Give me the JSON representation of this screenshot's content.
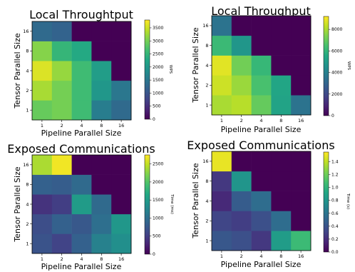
{
  "chart_data": [
    {
      "type": "heatmap",
      "title": "Local Throughtput",
      "xlabel": "Pipeline Parallel Size",
      "ylabel": "Tensor Parallel Size",
      "x": [
        "1",
        "2",
        "4",
        "8",
        "16"
      ],
      "y": [
        "1",
        "2",
        "4",
        "8",
        "16"
      ],
      "colorbar": {
        "label": "WPS",
        "range": [
          0,
          3800
        ],
        "ticks": [
          "0",
          "500",
          "1000",
          "1500",
          "2000",
          "2500",
          "3000",
          "3500"
        ]
      },
      "values": [
        [
          2900,
          3000,
          2600,
          1600,
          1300
        ],
        [
          3300,
          3000,
          2600,
          2000,
          1500
        ],
        [
          3600,
          3200,
          2600,
          2100,
          0
        ],
        [
          3100,
          2500,
          2300,
          0,
          0
        ],
        [
          1300,
          1200,
          0,
          0,
          0
        ]
      ]
    },
    {
      "type": "heatmap",
      "title": "Local Throughput",
      "xlabel": "Pipeline Parallel Size",
      "ylabel": "Tensor Parallel Size",
      "x": [
        "1",
        "2",
        "4",
        "8",
        "16"
      ],
      "y": [
        "1",
        "2",
        "4",
        "8",
        "16"
      ],
      "colorbar": {
        "label": "WPS",
        "range": [
          0,
          9200
        ],
        "ticks": [
          "0",
          "2000",
          "4000",
          "6000",
          "8000"
        ]
      },
      "values": [
        [
          8000,
          8200,
          7000,
          5300,
          3500
        ],
        [
          8500,
          7800,
          6500,
          5400,
          0
        ],
        [
          8800,
          7200,
          6100,
          0,
          0
        ],
        [
          6200,
          4800,
          0,
          0,
          0
        ],
        [
          3500,
          0,
          0,
          0,
          0
        ]
      ]
    },
    {
      "type": "heatmap",
      "title": "Exposed Communications",
      "xlabel": "Pipeline Parallel Size",
      "ylabel": "Tensor Parallel Size",
      "x": [
        "1",
        "2",
        "4",
        "8",
        "16"
      ],
      "y": [
        "1",
        "2",
        "4",
        "8",
        "16"
      ],
      "colorbar": {
        "label": "Time (ms)",
        "range": [
          0,
          2750
        ],
        "ticks": [
          "0",
          "500",
          "1000",
          "1500",
          "2000",
          "2500"
        ]
      },
      "values": [
        [
          700,
          550,
          850,
          1200,
          1350
        ],
        [
          650,
          850,
          750,
          1000,
          1450
        ],
        [
          400,
          500,
          1500,
          950,
          0
        ],
        [
          850,
          800,
          950,
          0,
          0
        ],
        [
          2400,
          2700,
          0,
          0,
          0
        ]
      ]
    },
    {
      "type": "heatmap",
      "title": "Exposed Communications",
      "xlabel": "Pipeline Parallel Size",
      "ylabel": "Tensor Parallel Size",
      "x": [
        "1",
        "2",
        "4",
        "8",
        "16"
      ],
      "y": [
        "1",
        "2",
        "4",
        "8",
        "16"
      ],
      "colorbar": {
        "label": "Time (s)",
        "range": [
          0,
          1.55
        ],
        "ticks": [
          "0.0",
          "0.2",
          "0.4",
          "0.6",
          "0.8",
          "1.0",
          "1.2",
          "1.4"
        ]
      },
      "values": [
        [
          0.42,
          0.38,
          0.25,
          0.85,
          1.05
        ],
        [
          0.32,
          0.28,
          0.38,
          0.55,
          0.0
        ],
        [
          0.18,
          0.45,
          0.55,
          0.0,
          0.0
        ],
        [
          0.25,
          0.8,
          0.0,
          0.0,
          0.0
        ],
        [
          1.5,
          0.0,
          0.0,
          0.0,
          0.0
        ]
      ]
    }
  ]
}
